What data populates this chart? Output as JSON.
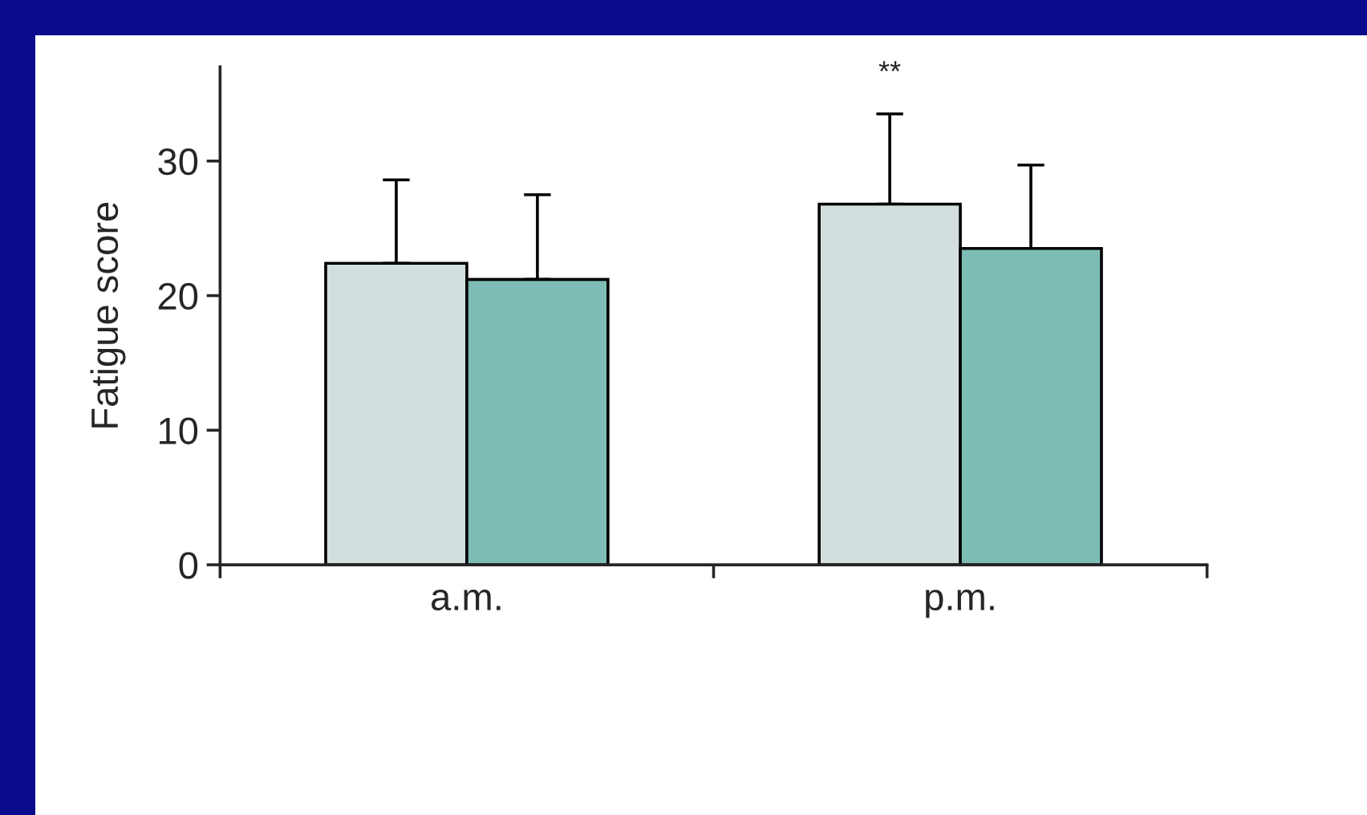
{
  "chart_data": {
    "type": "bar",
    "ylabel": "Fatigue score",
    "categories": [
      "a.m.",
      "p.m."
    ],
    "series": [
      {
        "color": "#d3dfdf",
        "values": [
          22.4,
          26.8
        ],
        "errors": [
          [
            22.4,
            28.6
          ],
          [
            26.8,
            33.5
          ]
        ]
      },
      {
        "color": "#7dbcb5",
        "values": [
          21.2,
          23.5
        ],
        "errors": [
          [
            21.2,
            27.5
          ],
          [
            23.5,
            29.7
          ]
        ]
      }
    ],
    "ylim": [
      0,
      37
    ],
    "yticks": [
      0,
      10,
      20,
      30
    ],
    "grid": false,
    "legend": false,
    "annotations": [
      "**"
    ]
  }
}
